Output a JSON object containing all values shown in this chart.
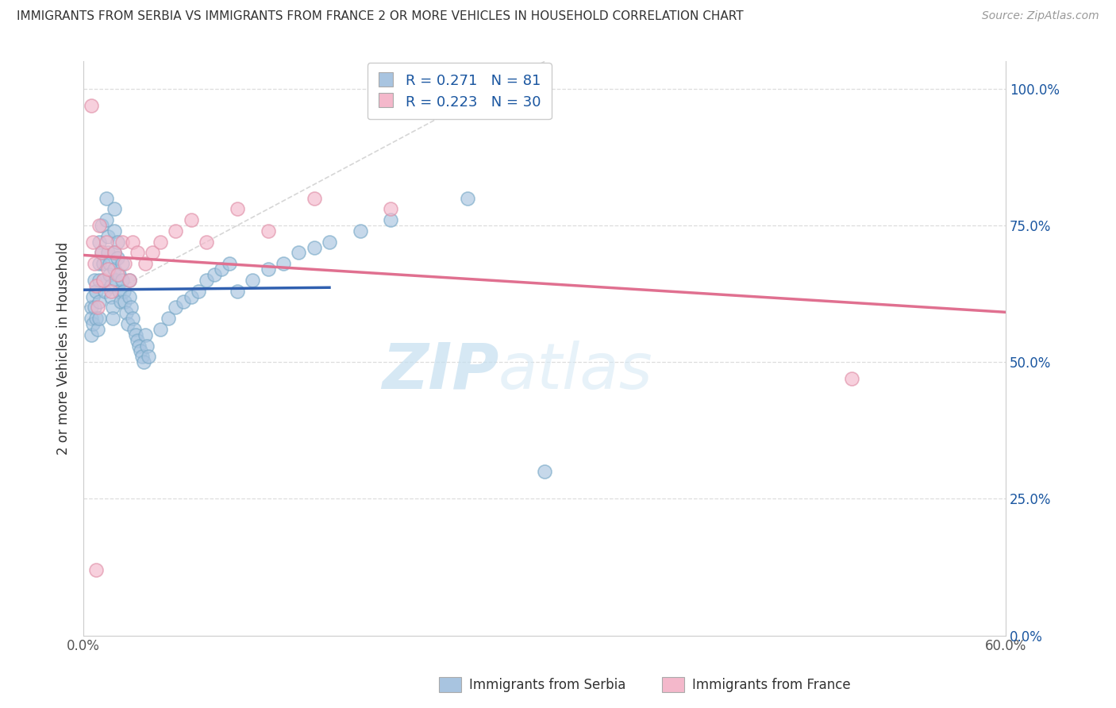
{
  "title": "IMMIGRANTS FROM SERBIA VS IMMIGRANTS FROM FRANCE 2 OR MORE VEHICLES IN HOUSEHOLD CORRELATION CHART",
  "source": "Source: ZipAtlas.com",
  "ylabel_label": "2 or more Vehicles in Household",
  "xlim": [
    0.0,
    0.6
  ],
  "ylim": [
    0.0,
    1.05
  ],
  "serbia_color": "#a8c4e0",
  "serbia_edge_color": "#7aaac8",
  "serbia_line_color": "#3060b0",
  "france_color": "#f4b8cb",
  "france_edge_color": "#e090a8",
  "france_line_color": "#e07090",
  "diag_color": "#cccccc",
  "grid_color": "#dddddd",
  "R_serbia": 0.271,
  "N_serbia": 81,
  "R_france": 0.223,
  "N_france": 30,
  "watermark_zip": "ZIP",
  "watermark_atlas": "atlas",
  "serbia_x": [
    0.005,
    0.005,
    0.005,
    0.006,
    0.006,
    0.007,
    0.007,
    0.008,
    0.008,
    0.009,
    0.01,
    0.01,
    0.01,
    0.01,
    0.01,
    0.012,
    0.012,
    0.013,
    0.013,
    0.014,
    0.015,
    0.015,
    0.016,
    0.016,
    0.017,
    0.017,
    0.018,
    0.018,
    0.019,
    0.019,
    0.02,
    0.02,
    0.02,
    0.02,
    0.021,
    0.022,
    0.022,
    0.023,
    0.023,
    0.024,
    0.025,
    0.025,
    0.026,
    0.027,
    0.028,
    0.029,
    0.03,
    0.03,
    0.031,
    0.032,
    0.033,
    0.034,
    0.035,
    0.036,
    0.037,
    0.038,
    0.039,
    0.04,
    0.041,
    0.042,
    0.05,
    0.055,
    0.06,
    0.065,
    0.07,
    0.075,
    0.08,
    0.085,
    0.09,
    0.095,
    0.1,
    0.11,
    0.12,
    0.13,
    0.14,
    0.15,
    0.16,
    0.18,
    0.2,
    0.25,
    0.3
  ],
  "serbia_y": [
    0.6,
    0.58,
    0.55,
    0.62,
    0.57,
    0.65,
    0.6,
    0.63,
    0.58,
    0.56,
    0.72,
    0.68,
    0.65,
    0.61,
    0.58,
    0.75,
    0.7,
    0.68,
    0.65,
    0.63,
    0.8,
    0.76,
    0.73,
    0.7,
    0.68,
    0.66,
    0.64,
    0.62,
    0.6,
    0.58,
    0.78,
    0.74,
    0.7,
    0.67,
    0.65,
    0.72,
    0.69,
    0.66,
    0.63,
    0.61,
    0.68,
    0.65,
    0.63,
    0.61,
    0.59,
    0.57,
    0.65,
    0.62,
    0.6,
    0.58,
    0.56,
    0.55,
    0.54,
    0.53,
    0.52,
    0.51,
    0.5,
    0.55,
    0.53,
    0.51,
    0.56,
    0.58,
    0.6,
    0.61,
    0.62,
    0.63,
    0.65,
    0.66,
    0.67,
    0.68,
    0.63,
    0.65,
    0.67,
    0.68,
    0.7,
    0.71,
    0.72,
    0.74,
    0.76,
    0.8,
    0.3
  ],
  "france_x": [
    0.005,
    0.006,
    0.007,
    0.008,
    0.009,
    0.01,
    0.012,
    0.013,
    0.015,
    0.016,
    0.018,
    0.02,
    0.022,
    0.025,
    0.027,
    0.03,
    0.032,
    0.035,
    0.04,
    0.045,
    0.05,
    0.06,
    0.07,
    0.08,
    0.1,
    0.12,
    0.15,
    0.2,
    0.5,
    0.008
  ],
  "france_y": [
    0.97,
    0.72,
    0.68,
    0.64,
    0.6,
    0.75,
    0.7,
    0.65,
    0.72,
    0.67,
    0.63,
    0.7,
    0.66,
    0.72,
    0.68,
    0.65,
    0.72,
    0.7,
    0.68,
    0.7,
    0.72,
    0.74,
    0.76,
    0.72,
    0.78,
    0.74,
    0.8,
    0.78,
    0.47,
    0.12
  ]
}
